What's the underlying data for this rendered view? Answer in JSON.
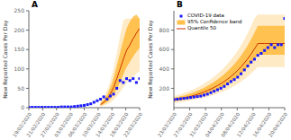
{
  "chart_data": [
    {
      "type": "line",
      "title": "A",
      "ylabel": "New Reported Cases Per Day",
      "xlim": [
        0,
        34
      ],
      "xticks": [
        {
          "value": 0,
          "label": "19/02/2020"
        },
        {
          "value": 4.25,
          "label": "21/02/2020"
        },
        {
          "value": 8.5,
          "label": "27/02/2020"
        },
        {
          "value": 12.75,
          "label": "03/03/2020"
        },
        {
          "value": 17,
          "label": "06/03/2020"
        },
        {
          "value": 21.25,
          "label": "10/03/2020"
        },
        {
          "value": 25.5,
          "label": "14/03/2020"
        },
        {
          "value": 29.75,
          "label": "18/03/2020"
        },
        {
          "value": 34,
          "label": "22/03/2020"
        }
      ],
      "ylim": [
        0,
        250
      ],
      "yticks": [
        0,
        50,
        100,
        150,
        200,
        250
      ],
      "series": [
        {
          "type": "scatter",
          "marker": "square",
          "color": "#1a1aff",
          "x": [
            0,
            1,
            2,
            3,
            4,
            5,
            6,
            7,
            8,
            9,
            10,
            11,
            12,
            13,
            14,
            15,
            16,
            17,
            18,
            19,
            20,
            21,
            22,
            23,
            24,
            25,
            26,
            27,
            28,
            29,
            30,
            31,
            32,
            33,
            34
          ],
          "values": [
            1,
            1,
            1,
            1,
            1,
            1,
            1,
            1,
            1,
            1,
            2,
            2,
            2,
            2,
            3,
            4,
            5,
            6,
            8,
            10,
            14,
            18,
            22,
            28,
            22,
            30,
            35,
            50,
            70,
            65,
            75,
            70,
            75,
            65,
            75
          ]
        },
        {
          "type": "band",
          "color": "#FFD080",
          "x": [
            22,
            23,
            24,
            25,
            26,
            27,
            28,
            29,
            30,
            31,
            32,
            33,
            34
          ],
          "lower": [
            3,
            5,
            8,
            13,
            20,
            29,
            40,
            52,
            64,
            72,
            80,
            88,
            95
          ],
          "upper": [
            16,
            28,
            44,
            68,
            100,
            140,
            185,
            225,
            230,
            230,
            230,
            230,
            230
          ]
        },
        {
          "type": "band",
          "color": "#FFA500",
          "x": [
            22,
            23,
            24,
            25,
            26,
            27,
            28,
            29,
            30,
            31,
            32,
            33,
            34
          ],
          "lower": [
            5,
            9,
            14,
            22,
            34,
            48,
            66,
            86,
            105,
            118,
            132,
            144,
            154
          ],
          "upper": [
            12,
            21,
            33,
            52,
            76,
            108,
            142,
            174,
            204,
            222,
            235,
            240,
            230
          ]
        },
        {
          "type": "line",
          "color": "#cc3300",
          "x": [
            22,
            23,
            24,
            25,
            26,
            27,
            28,
            29,
            30,
            31,
            32,
            33,
            34
          ],
          "values": [
            8,
            14,
            22,
            35,
            52,
            75,
            100,
            125,
            148,
            162,
            178,
            192,
            205
          ]
        }
      ]
    },
    {
      "type": "line",
      "title": "B",
      "ylabel": "New Reported Cases Per Day",
      "xlim": [
        0,
        33
      ],
      "xticks": [
        {
          "value": 0,
          "label": "23/03/2020"
        },
        {
          "value": 4.714285714285714,
          "label": "27/03/2020"
        },
        {
          "value": 9.428571428571429,
          "label": "31/03/2020"
        },
        {
          "value": 14.142857142857142,
          "label": "04/04/2020"
        },
        {
          "value": 18.857142857142858,
          "label": "08/04/2020"
        },
        {
          "value": 23.571428571428573,
          "label": "12/04/2020"
        },
        {
          "value": 28.285714285714285,
          "label": "16/04/2020"
        },
        {
          "value": 33,
          "label": "20/04/2020"
        }
      ],
      "ylim": [
        0,
        1000
      ],
      "yticks": [
        200,
        400,
        600,
        800
      ],
      "legend": "upper left",
      "series": [
        {
          "name": "COVID-19 data",
          "type": "scatter",
          "marker": "square",
          "color": "#1a1aff",
          "x": [
            0,
            1,
            2,
            3,
            4,
            5,
            6,
            7,
            8,
            9,
            10,
            11,
            12,
            13,
            14,
            15,
            16,
            17,
            18,
            19,
            20,
            21,
            22,
            23,
            24,
            25,
            26,
            27,
            28,
            29,
            30,
            31,
            32,
            33
          ],
          "values": [
            85,
            88,
            92,
            96,
            100,
            105,
            110,
            115,
            120,
            130,
            140,
            155,
            170,
            185,
            200,
            220,
            245,
            270,
            290,
            315,
            350,
            390,
            430,
            470,
            500,
            540,
            560,
            590,
            620,
            650,
            620,
            650,
            650,
            920
          ]
        },
        {
          "type": "band",
          "color": "#FFD080",
          "x": [
            0,
            1,
            2,
            3,
            4,
            5,
            6,
            7,
            8,
            9,
            10,
            11,
            12,
            13,
            14,
            15,
            16,
            17,
            18,
            19,
            20,
            21,
            22,
            23,
            24,
            25,
            26,
            27,
            28,
            29,
            30,
            31,
            32,
            33
          ],
          "lower": [
            50,
            54,
            58,
            63,
            68,
            74,
            80,
            87,
            95,
            103,
            112,
            122,
            133,
            145,
            158,
            172,
            188,
            205,
            224,
            245,
            268,
            294,
            322,
            352,
            385,
            420,
            420,
            420,
            420,
            420,
            420,
            420,
            420,
            420
          ],
          "upper": [
            120,
            130,
            140,
            152,
            164,
            178,
            193,
            210,
            228,
            248,
            270,
            295,
            321,
            350,
            381,
            415,
            453,
            494,
            539,
            589,
            644,
            704,
            770,
            843,
            922,
            960,
            960,
            960,
            960,
            960,
            960,
            960,
            960,
            960
          ]
        },
        {
          "name": "95% Confidence band",
          "type": "band",
          "color": "#FFA500",
          "x": [
            0,
            1,
            2,
            3,
            4,
            5,
            6,
            7,
            8,
            9,
            10,
            11,
            12,
            13,
            14,
            15,
            16,
            17,
            18,
            19,
            20,
            21,
            22,
            23,
            24,
            25,
            26,
            27,
            28,
            29,
            30,
            31,
            32,
            33
          ],
          "lower": [
            65,
            70,
            76,
            82,
            89,
            96,
            104,
            113,
            123,
            134,
            146,
            159,
            173,
            188,
            205,
            223,
            243,
            266,
            290,
            318,
            349,
            382,
            418,
            458,
            500,
            546,
            546,
            546,
            546,
            546,
            546,
            546,
            546,
            546
          ],
          "upper": [
            100,
            108,
            117,
            126,
            136,
            148,
            160,
            174,
            190,
            207,
            225,
            245,
            267,
            291,
            317,
            346,
            377,
            411,
            449,
            490,
            536,
            587,
            643,
            705,
            772,
            845,
            845,
            845,
            845,
            845,
            845,
            845,
            845,
            845
          ]
        },
        {
          "name": "Quantile 50",
          "type": "line",
          "color": "#cc3300",
          "x": [
            0,
            1,
            2,
            3,
            4,
            5,
            6,
            7,
            8,
            9,
            10,
            11,
            12,
            13,
            14,
            15,
            16,
            17,
            18,
            19,
            20,
            21,
            22,
            23,
            24,
            25,
            26,
            27,
            28,
            29,
            30,
            31,
            32,
            33
          ],
          "values": [
            80,
            86,
            93,
            100,
            108,
            117,
            127,
            138,
            150,
            163,
            177,
            193,
            210,
            228,
            248,
            270,
            295,
            322,
            352,
            385,
            422,
            462,
            506,
            554,
            606,
            662,
            662,
            662,
            662,
            662,
            662,
            662,
            662,
            662
          ]
        }
      ]
    }
  ]
}
